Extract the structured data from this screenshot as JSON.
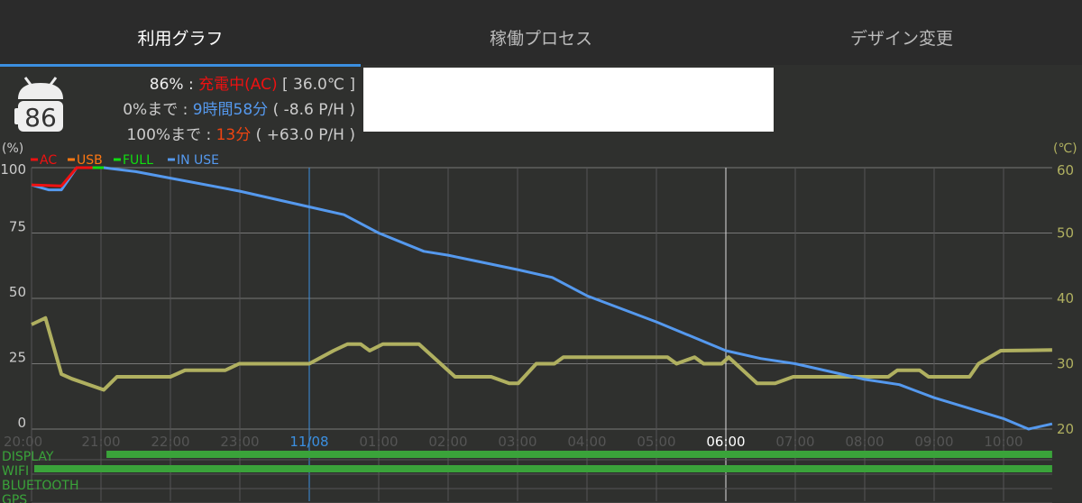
{
  "tabs": [
    {
      "label": "利用グラフ",
      "active": true
    },
    {
      "label": "稼働プロセス"
    },
    {
      "label": "デザイン変更"
    }
  ],
  "battery_icon": {
    "level": "86"
  },
  "info": {
    "line1": {
      "prefix": "86% : ",
      "status": "充電中(AC)",
      "suffix": " [ 36.0℃ ]"
    },
    "line2": {
      "prefix": "0%まで : ",
      "value": "9時間58分",
      "suffix": " ( -8.6 P/H )"
    },
    "line3": {
      "prefix": "100%まで : ",
      "value": "13分",
      "suffix": " ( +63.0 P/H )"
    }
  },
  "colors": {
    "ac": "#ee1111",
    "usb": "#ff7711",
    "full": "#11dd11",
    "inuse": "#5599ee",
    "temp": "#b0b060",
    "bars": "#3aa33a",
    "accent": "#3b8fe0"
  },
  "chart_data": {
    "type": "line",
    "ylabel_left": "(%)",
    "ylabel_right": "(℃)",
    "legend": [
      "AC",
      "USB",
      "FULL",
      "IN USE"
    ],
    "y_ticks": [
      "100",
      "75",
      "50",
      "25",
      "0"
    ],
    "y2_ticks": [
      "60",
      "50",
      "40",
      "30",
      "20"
    ],
    "ylim": [
      0,
      100
    ],
    "y2lim": [
      20,
      60
    ],
    "x_unit": "hours since 20:00",
    "xlim": [
      0,
      14.7
    ],
    "x_ticks": [
      "20:00",
      "21:00",
      "22:00",
      "23:00",
      "11/08",
      "01:00",
      "02:00",
      "03:00",
      "04:00",
      "05:00",
      "06:00",
      "07:00",
      "08:00",
      "09:00",
      "10:00"
    ],
    "battery_ac": [
      [
        0,
        93.4
      ],
      [
        0.43,
        93
      ],
      [
        0.65,
        100
      ],
      [
        0.88,
        100
      ]
    ],
    "battery_full": [
      [
        0.88,
        100
      ],
      [
        1.04,
        100
      ]
    ],
    "battery_inuse": [
      [
        0,
        93.4
      ],
      [
        0.25,
        91.5
      ],
      [
        0.43,
        91.5
      ],
      [
        0.65,
        100
      ],
      [
        1.04,
        100
      ],
      [
        1.5,
        98.5
      ],
      [
        2,
        96
      ],
      [
        3,
        91
      ],
      [
        4,
        85
      ],
      [
        4.5,
        82
      ],
      [
        5,
        75
      ],
      [
        5.65,
        68
      ],
      [
        6,
        66.5
      ],
      [
        7,
        61
      ],
      [
        7.5,
        58
      ],
      [
        8,
        51
      ],
      [
        9,
        41
      ],
      [
        10,
        30
      ],
      [
        10.5,
        27
      ],
      [
        11,
        25
      ],
      [
        12,
        19
      ],
      [
        12.5,
        17
      ],
      [
        13,
        12
      ],
      [
        13.5,
        8
      ],
      [
        14,
        4
      ],
      [
        14.36,
        0
      ],
      [
        14.7,
        2
      ]
    ],
    "temperature": [
      [
        0,
        36
      ],
      [
        0.2,
        37
      ],
      [
        0.43,
        28.4
      ],
      [
        0.58,
        27.7
      ],
      [
        1.04,
        26
      ],
      [
        1.23,
        28
      ],
      [
        2,
        28
      ],
      [
        2.21,
        29
      ],
      [
        2.79,
        29
      ],
      [
        2.99,
        30
      ],
      [
        4,
        30
      ],
      [
        4.35,
        32
      ],
      [
        4.55,
        33
      ],
      [
        4.74,
        33
      ],
      [
        4.87,
        32
      ],
      [
        5.06,
        33
      ],
      [
        5.58,
        33
      ],
      [
        6.1,
        28
      ],
      [
        6.62,
        28
      ],
      [
        6.88,
        27
      ],
      [
        7.01,
        27
      ],
      [
        7.27,
        30
      ],
      [
        7.53,
        30
      ],
      [
        7.66,
        31
      ],
      [
        9.16,
        31
      ],
      [
        9.29,
        30
      ],
      [
        9.55,
        31
      ],
      [
        9.68,
        30
      ],
      [
        9.94,
        30
      ],
      [
        10.04,
        31
      ],
      [
        10.45,
        27
      ],
      [
        10.71,
        27
      ],
      [
        10.97,
        28
      ],
      [
        12.34,
        28
      ],
      [
        12.47,
        29
      ],
      [
        12.79,
        29
      ],
      [
        12.92,
        28
      ],
      [
        13.51,
        28
      ],
      [
        13.64,
        30
      ],
      [
        13.96,
        32
      ],
      [
        14.7,
        32.1
      ]
    ],
    "markers": {
      "date_line": "11/08",
      "now_line": "06:00"
    }
  },
  "rows": [
    {
      "label": "DISPLAY",
      "on": [
        [
          1.04,
          14.7
        ]
      ]
    },
    {
      "label": "WIFI",
      "on": [
        [
          0,
          14.7
        ]
      ]
    },
    {
      "label": "BLUETOOTH",
      "on": []
    },
    {
      "label": "GPS",
      "on": []
    }
  ]
}
